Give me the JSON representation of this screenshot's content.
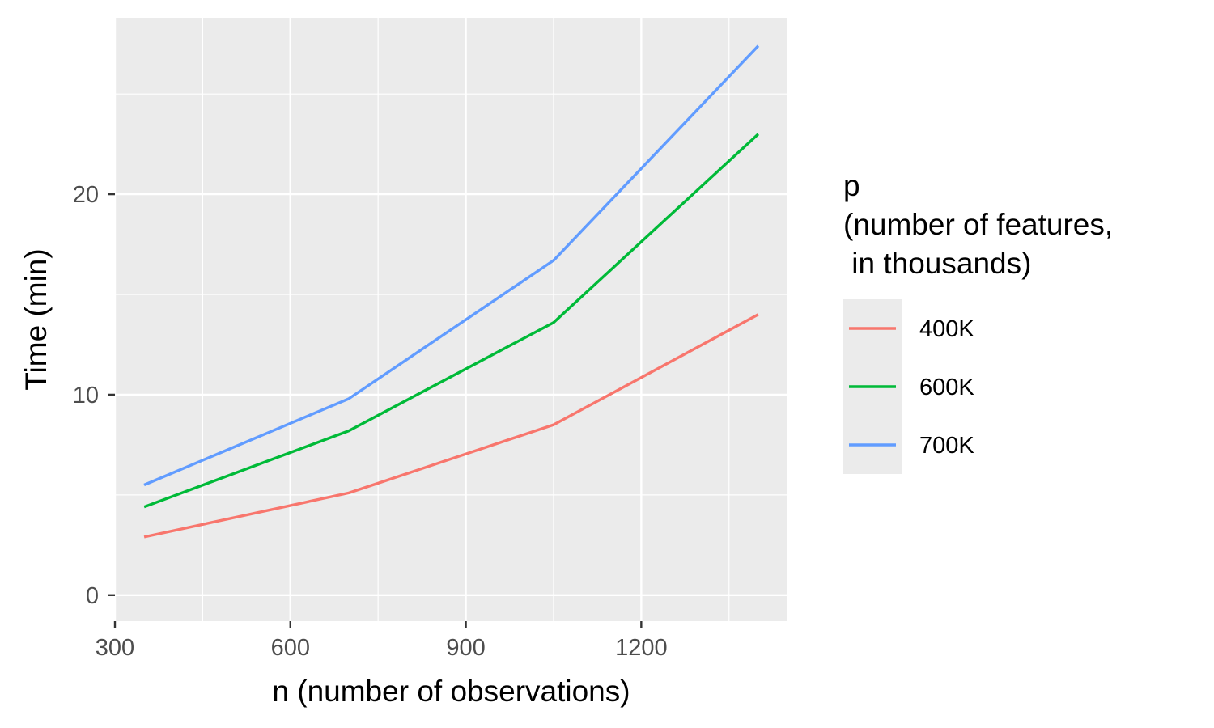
{
  "chart_data": {
    "type": "line",
    "xlabel": "n (number of observations)",
    "ylabel": "Time (min)",
    "xlim": [
      300,
      1450
    ],
    "ylim": [
      -1.3,
      28.8
    ],
    "xticks": [
      300,
      600,
      900,
      1200
    ],
    "xticks_minor": [
      450,
      750,
      1050,
      1350
    ],
    "yticks": [
      0,
      10,
      20
    ],
    "yticks_minor": [
      5,
      15,
      25
    ],
    "x": [
      350,
      700,
      1050,
      1400
    ],
    "series": [
      {
        "name": "400K",
        "color": "#F8766D",
        "values": [
          2.9,
          5.1,
          8.5,
          14.0
        ]
      },
      {
        "name": "600K",
        "color": "#00BA38",
        "values": [
          4.4,
          8.2,
          13.6,
          23.0
        ]
      },
      {
        "name": "700K",
        "color": "#619CFF",
        "values": [
          5.5,
          9.8,
          16.7,
          27.4
        ]
      }
    ],
    "legend": {
      "title_lines": [
        "p",
        "(number of features,",
        " in thousands)"
      ],
      "placement": "right"
    },
    "grid": true,
    "panel_color": "#EBEBEB"
  }
}
